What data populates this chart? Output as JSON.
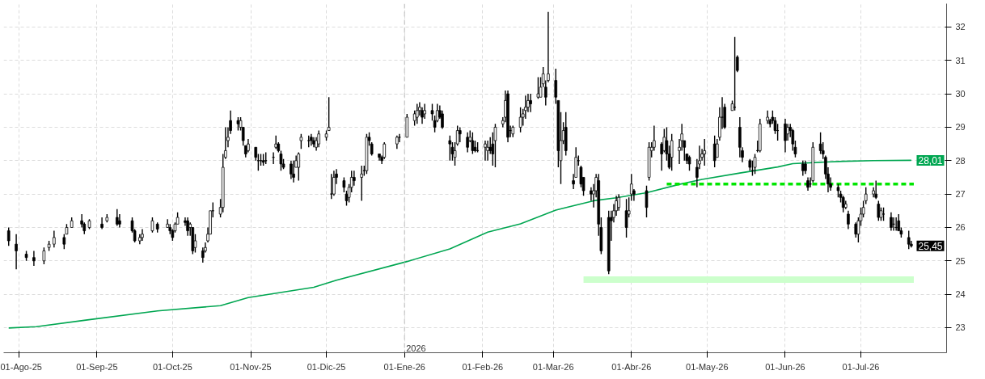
{
  "chart_data": {
    "type": "candlestick",
    "color": "#000000",
    "x": [
      "2025-07-28",
      "2025-07-31",
      "2025-08-04",
      "2025-08-07",
      "2025-08-11",
      "2025-08-13",
      "2025-08-15",
      "2025-08-19",
      "2025-08-20",
      "2025-08-22",
      "2025-08-26",
      "2025-08-27",
      "2025-08-29",
      "2025-09-03",
      "2025-09-05",
      "2025-09-09",
      "2025-09-10",
      "2025-09-15",
      "2025-09-16",
      "2025-09-18",
      "2025-09-19",
      "2025-09-23",
      "2025-09-25",
      "2025-09-29",
      "2025-09-30",
      "2025-10-01",
      "2025-10-02",
      "2025-10-03",
      "2025-10-06",
      "2025-10-07",
      "2025-10-08",
      "2025-10-09",
      "2025-10-10",
      "2025-10-13",
      "2025-10-14",
      "2025-10-15",
      "2025-10-16",
      "2025-10-17",
      "2025-10-20",
      "2025-10-21",
      "2025-10-22",
      "2025-10-23",
      "2025-10-24",
      "2025-10-27",
      "2025-10-28",
      "2025-10-29",
      "2025-10-30",
      "2025-10-31",
      "2025-11-03",
      "2025-11-04",
      "2025-11-05",
      "2025-11-06",
      "2025-11-07",
      "2025-11-10",
      "2025-11-11",
      "2025-11-12",
      "2025-11-13",
      "2025-11-14",
      "2025-11-17",
      "2025-11-18",
      "2025-11-19",
      "2025-11-20",
      "2025-11-21",
      "2025-11-24",
      "2025-11-25",
      "2025-11-26",
      "2025-11-27",
      "2025-11-28",
      "2025-12-01",
      "2025-12-02",
      "2025-12-03",
      "2025-12-04",
      "2025-12-05",
      "2025-12-08",
      "2025-12-09",
      "2025-12-10",
      "2025-12-11",
      "2025-12-12",
      "2025-12-15",
      "2025-12-16",
      "2025-12-17",
      "2025-12-18",
      "2025-12-19",
      "2025-12-22",
      "2025-12-23",
      "2025-12-24",
      "2025-12-29",
      "2025-12-30",
      "2026-01-02",
      "2026-01-05",
      "2026-01-06",
      "2026-01-07",
      "2026-01-08",
      "2026-01-09",
      "2026-01-12",
      "2026-01-13",
      "2026-01-14",
      "2026-01-15",
      "2026-01-16",
      "2026-01-19",
      "2026-01-20",
      "2026-01-21",
      "2026-01-22",
      "2026-01-23",
      "2026-01-26",
      "2026-01-27",
      "2026-01-28",
      "2026-01-29",
      "2026-01-30",
      "2026-02-02",
      "2026-02-03",
      "2026-02-04",
      "2026-02-05",
      "2026-02-06",
      "2026-02-09",
      "2026-02-10",
      "2026-02-11",
      "2026-02-12",
      "2026-02-13",
      "2026-02-16",
      "2026-02-17",
      "2026-02-18",
      "2026-02-19",
      "2026-02-20",
      "2026-02-23",
      "2026-02-24",
      "2026-02-25",
      "2026-02-26",
      "2026-02-27",
      "2026-03-02",
      "2026-03-03",
      "2026-03-04",
      "2026-03-05",
      "2026-03-06",
      "2026-03-09",
      "2026-03-10",
      "2026-03-11",
      "2026-03-12",
      "2026-03-13",
      "2026-03-16",
      "2026-03-17",
      "2026-03-18",
      "2026-03-19",
      "2026-03-20",
      "2026-03-23",
      "2026-03-24",
      "2026-03-25",
      "2026-03-26",
      "2026-03-27",
      "2026-03-30",
      "2026-03-31",
      "2026-04-01",
      "2026-04-02",
      "2026-04-07",
      "2026-04-08",
      "2026-04-09",
      "2026-04-10",
      "2026-04-13",
      "2026-04-14",
      "2026-04-15",
      "2026-04-16",
      "2026-04-17",
      "2026-04-20",
      "2026-04-21",
      "2026-04-22",
      "2026-04-23",
      "2026-04-24",
      "2026-04-27",
      "2026-04-28",
      "2026-04-29",
      "2026-04-30",
      "2026-05-04",
      "2026-05-05",
      "2026-05-06",
      "2026-05-07",
      "2026-05-08",
      "2026-05-11",
      "2026-05-12",
      "2026-05-13",
      "2026-05-14",
      "2026-05-15",
      "2026-05-18",
      "2026-05-19",
      "2026-05-20",
      "2026-05-21",
      "2026-05-22",
      "2026-05-25",
      "2026-05-26",
      "2026-05-27",
      "2026-05-28",
      "2026-05-29",
      "2026-06-01",
      "2026-06-02",
      "2026-06-03",
      "2026-06-04",
      "2026-06-05",
      "2026-06-08",
      "2026-06-09",
      "2026-06-10",
      "2026-06-11",
      "2026-06-12",
      "2026-06-15",
      "2026-06-16",
      "2026-06-17",
      "2026-06-18",
      "2026-06-19",
      "2026-06-22",
      "2026-06-23",
      "2026-06-24",
      "2026-06-25",
      "2026-06-26",
      "2026-06-29",
      "2026-06-30",
      "2026-07-01",
      "2026-07-02",
      "2026-07-03",
      "2026-07-06",
      "2026-07-07",
      "2026-07-08",
      "2026-07-09",
      "2026-07-10",
      "2026-07-13",
      "2026-07-14",
      "2026-07-15",
      "2026-07-16",
      "2026-07-17",
      "2026-07-20",
      "2026-07-21"
    ],
    "ohlc": [
      [
        25.9,
        26.0,
        25.45,
        25.6
      ],
      [
        25.5,
        25.8,
        24.75,
        25.3
      ],
      [
        25.2,
        25.3,
        25.0,
        25.1
      ],
      [
        25.1,
        25.3,
        24.85,
        25.0
      ],
      [
        25.0,
        25.4,
        24.9,
        25.3
      ],
      [
        25.4,
        25.6,
        25.3,
        25.5
      ],
      [
        25.5,
        25.9,
        25.4,
        25.7
      ],
      [
        25.7,
        25.8,
        25.35,
        25.5
      ],
      [
        25.8,
        26.1,
        25.8,
        26.0
      ],
      [
        26.0,
        26.3,
        26.0,
        26.2
      ],
      [
        26.2,
        26.4,
        26.0,
        26.1
      ],
      [
        26.1,
        26.15,
        25.8,
        25.9
      ],
      [
        26.0,
        26.25,
        25.95,
        26.2
      ],
      [
        26.1,
        26.3,
        25.95,
        26.0
      ],
      [
        26.2,
        26.4,
        26.15,
        26.3
      ],
      [
        26.3,
        26.55,
        26.05,
        26.1
      ],
      [
        26.2,
        26.4,
        26.0,
        26.1
      ],
      [
        26.2,
        26.3,
        25.85,
        25.9
      ],
      [
        25.9,
        25.95,
        25.55,
        25.6
      ],
      [
        25.6,
        25.8,
        25.5,
        25.7
      ],
      [
        25.7,
        25.95,
        25.6,
        25.8
      ],
      [
        25.9,
        26.3,
        25.85,
        26.2
      ],
      [
        26.1,
        26.15,
        25.85,
        25.95
      ],
      [
        26.0,
        26.25,
        26.0,
        26.1
      ],
      [
        26.0,
        26.1,
        25.8,
        25.9
      ],
      [
        25.9,
        25.95,
        25.6,
        25.7
      ],
      [
        25.9,
        26.15,
        25.85,
        26.1
      ],
      [
        26.1,
        26.45,
        26.1,
        26.3
      ],
      [
        26.2,
        26.3,
        26.05,
        26.15
      ],
      [
        26.2,
        26.3,
        25.75,
        25.9
      ],
      [
        26.0,
        26.15,
        25.75,
        26.1
      ],
      [
        26.0,
        26.0,
        25.2,
        25.3
      ],
      [
        25.4,
        25.8,
        25.25,
        25.6
      ],
      [
        25.3,
        25.4,
        24.95,
        25.1
      ],
      [
        25.3,
        25.55,
        25.25,
        25.4
      ],
      [
        25.6,
        26.0,
        25.55,
        25.8
      ],
      [
        25.8,
        26.5,
        25.8,
        26.5
      ],
      [
        26.5,
        26.75,
        26.3,
        26.5
      ],
      [
        26.4,
        26.85,
        26.3,
        26.6
      ],
      [
        26.6,
        28.2,
        26.45,
        27.8
      ],
      [
        28.1,
        29.0,
        28.05,
        28.3
      ],
      [
        28.6,
        29.0,
        28.4,
        28.7
      ],
      [
        29.2,
        29.5,
        28.8,
        28.9
      ],
      [
        29.2,
        29.3,
        28.9,
        29.1
      ],
      [
        29.0,
        29.3,
        28.9,
        29.2
      ],
      [
        29.0,
        29.0,
        28.45,
        28.6
      ],
      [
        28.45,
        28.45,
        28.1,
        28.2
      ],
      [
        28.3,
        28.65,
        28.25,
        28.5
      ],
      [
        28.4,
        28.4,
        28.0,
        28.1
      ],
      [
        28.0,
        28.2,
        27.7,
        28.0
      ],
      [
        28.0,
        28.2,
        27.85,
        28.0
      ],
      [
        28.0,
        28.2,
        27.85,
        27.95
      ],
      [
        28.0,
        28.25,
        27.9,
        28.0
      ],
      [
        28.1,
        28.25,
        27.9,
        28.1
      ],
      [
        28.4,
        28.75,
        28.35,
        28.5
      ],
      [
        28.5,
        28.55,
        28.25,
        28.3
      ],
      [
        28.2,
        28.3,
        27.7,
        27.9
      ],
      [
        27.9,
        28.05,
        27.75,
        27.8
      ],
      [
        27.9,
        28.0,
        27.45,
        27.6
      ],
      [
        27.6,
        28.0,
        27.35,
        27.5
      ],
      [
        27.8,
        28.15,
        27.8,
        28.0
      ],
      [
        27.8,
        28.25,
        27.4,
        28.2
      ],
      [
        28.6,
        28.8,
        28.35,
        28.7
      ],
      [
        28.6,
        28.75,
        28.4,
        28.6
      ],
      [
        28.7,
        28.8,
        28.45,
        28.6
      ],
      [
        28.6,
        28.7,
        28.4,
        28.5
      ],
      [
        28.4,
        28.7,
        28.3,
        28.6
      ],
      [
        28.5,
        28.9,
        28.4,
        28.8
      ],
      [
        28.7,
        28.9,
        28.6,
        28.8
      ],
      [
        28.9,
        29.9,
        28.9,
        29.0
      ],
      [
        27.0,
        27.6,
        26.85,
        27.0
      ],
      [
        27.0,
        27.7,
        26.95,
        27.5
      ],
      [
        27.6,
        27.75,
        27.3,
        27.5
      ],
      [
        27.4,
        27.5,
        27.05,
        27.2
      ],
      [
        27.0,
        27.1,
        26.65,
        26.8
      ],
      [
        26.9,
        27.3,
        26.75,
        27.2
      ],
      [
        27.2,
        27.7,
        27.05,
        27.5
      ],
      [
        27.5,
        27.7,
        27.25,
        27.4
      ],
      [
        27.5,
        27.85,
        26.8,
        27.6
      ],
      [
        27.7,
        27.85,
        27.55,
        27.7
      ],
      [
        27.7,
        28.8,
        27.6,
        28.7
      ],
      [
        28.7,
        28.85,
        28.45,
        28.6
      ],
      [
        28.5,
        28.55,
        28.15,
        28.2
      ],
      [
        28.2,
        28.2,
        28.0,
        28.1
      ],
      [
        28.1,
        28.15,
        27.9,
        28.0
      ],
      [
        28.1,
        28.55,
        28.05,
        28.5
      ],
      [
        28.5,
        28.75,
        28.35,
        28.7
      ],
      [
        28.7,
        28.8,
        28.55,
        28.7
      ],
      [
        28.7,
        29.4,
        28.7,
        29.3
      ],
      [
        29.2,
        29.5,
        29.05,
        29.4
      ],
      [
        29.3,
        29.7,
        29.1,
        29.5
      ],
      [
        29.5,
        29.75,
        29.35,
        29.6
      ],
      [
        29.5,
        29.6,
        29.1,
        29.3
      ],
      [
        29.4,
        29.7,
        29.25,
        29.5
      ],
      [
        29.5,
        29.7,
        29.2,
        29.4
      ],
      [
        29.2,
        29.35,
        28.85,
        29.0
      ],
      [
        29.2,
        29.7,
        29.15,
        29.5
      ],
      [
        29.5,
        29.65,
        29.25,
        29.3
      ],
      [
        29.4,
        29.5,
        28.95,
        29.0
      ],
      [
        28.6,
        28.75,
        28.0,
        28.5
      ],
      [
        28.4,
        28.55,
        28.0,
        28.2
      ],
      [
        28.1,
        28.55,
        27.85,
        28.3
      ],
      [
        28.5,
        29.05,
        28.45,
        28.9
      ],
      [
        28.9,
        29.0,
        28.55,
        28.8
      ],
      [
        28.7,
        28.85,
        28.25,
        28.4
      ],
      [
        28.6,
        28.9,
        28.55,
        28.7
      ],
      [
        28.6,
        28.85,
        28.2,
        28.3
      ],
      [
        28.4,
        28.6,
        28.25,
        28.3
      ],
      [
        28.3,
        28.55,
        28.25,
        28.3
      ],
      [
        28.4,
        28.6,
        28.0,
        28.5
      ],
      [
        28.3,
        28.6,
        28.0,
        28.4
      ],
      [
        28.4,
        28.7,
        28.2,
        28.3
      ],
      [
        28.5,
        28.85,
        27.85,
        28.2
      ],
      [
        28.6,
        29.1,
        27.8,
        29.0
      ],
      [
        29.1,
        29.3,
        29.0,
        29.2
      ],
      [
        29.3,
        30.1,
        29.15,
        29.8
      ],
      [
        30.0,
        30.1,
        28.55,
        28.7
      ],
      [
        28.9,
        29.05,
        28.7,
        28.9
      ],
      [
        28.8,
        29.05,
        28.7,
        29.0
      ],
      [
        29.0,
        29.6,
        28.85,
        29.3
      ],
      [
        29.3,
        29.55,
        29.05,
        29.4
      ],
      [
        29.5,
        29.95,
        29.25,
        29.6
      ],
      [
        29.6,
        30.0,
        29.45,
        29.8
      ],
      [
        29.8,
        30.0,
        29.45,
        29.7
      ],
      [
        29.9,
        30.5,
        29.85,
        30.0
      ],
      [
        29.9,
        30.5,
        29.9,
        30.2
      ],
      [
        30.3,
        30.8,
        30.2,
        30.6
      ],
      [
        30.2,
        30.4,
        29.65,
        29.9
      ],
      [
        30.4,
        32.45,
        30.35,
        30.6
      ],
      [
        30.4,
        30.75,
        29.7,
        29.9
      ],
      [
        29.8,
        29.8,
        27.8,
        28.3
      ],
      [
        28.0,
        29.45,
        27.3,
        28.6
      ],
      [
        28.6,
        29.15,
        28.5,
        28.9
      ],
      [
        29.0,
        29.45,
        28.15,
        28.3
      ],
      [
        27.4,
        27.6,
        27.15,
        27.3
      ],
      [
        27.5,
        28.4,
        27.5,
        28.1
      ],
      [
        28.0,
        28.15,
        27.85,
        28.0
      ],
      [
        27.8,
        27.85,
        27.2,
        27.3
      ],
      [
        27.5,
        27.5,
        26.95,
        27.1
      ],
      [
        27.1,
        27.2,
        26.8,
        27.0
      ],
      [
        27.0,
        27.3,
        26.6,
        27.1
      ],
      [
        27.1,
        27.6,
        26.9,
        27.5
      ],
      [
        27.4,
        27.6,
        25.75,
        26.1
      ],
      [
        26.0,
        26.3,
        25.2,
        25.3
      ],
      [
        26.3,
        26.5,
        24.6,
        24.7
      ],
      [
        26.3,
        26.5,
        25.6,
        26.2
      ],
      [
        26.3,
        26.7,
        26.15,
        26.5
      ],
      [
        26.5,
        26.95,
        26.35,
        26.8
      ],
      [
        26.6,
        27.0,
        26.5,
        26.9
      ],
      [
        26.5,
        26.85,
        25.7,
        26.0
      ],
      [
        26.4,
        26.9,
        26.3,
        26.5
      ],
      [
        27.0,
        27.6,
        26.8,
        27.3
      ],
      [
        27.1,
        27.15,
        26.8,
        27.0
      ],
      [
        27.1,
        27.25,
        26.3,
        26.6
      ],
      [
        27.5,
        28.55,
        27.4,
        28.4
      ],
      [
        28.3,
        28.55,
        28.1,
        28.4
      ],
      [
        28.4,
        29.05,
        28.3,
        28.6
      ],
      [
        28.5,
        28.55,
        27.7,
        28.2
      ],
      [
        28.3,
        28.95,
        28.25,
        28.7
      ],
      [
        28.6,
        29.0,
        28.0,
        28.2
      ],
      [
        28.2,
        28.45,
        27.75,
        27.8
      ],
      [
        28.1,
        28.8,
        27.7,
        28.6
      ],
      [
        28.3,
        28.65,
        27.9,
        28.4
      ],
      [
        28.6,
        29.1,
        28.3,
        28.8
      ],
      [
        28.6,
        28.6,
        28.0,
        28.4
      ],
      [
        28.2,
        28.2,
        27.9,
        28.0
      ],
      [
        28.1,
        28.15,
        27.7,
        27.9
      ],
      [
        27.8,
        28.05,
        27.2,
        27.5
      ],
      [
        27.9,
        28.45,
        27.75,
        28.0
      ],
      [
        28.1,
        28.35,
        28.0,
        28.2
      ],
      [
        28.2,
        28.65,
        27.85,
        28.3
      ],
      [
        28.5,
        28.75,
        27.8,
        28.0
      ],
      [
        28.1,
        28.65,
        28.1,
        28.5
      ],
      [
        28.7,
        29.6,
        28.6,
        29.3
      ],
      [
        29.3,
        29.9,
        28.95,
        29.3
      ],
      [
        29.6,
        29.7,
        28.95,
        29.0
      ],
      [
        29.5,
        29.8,
        29.5,
        29.7
      ],
      [
        29.6,
        31.7,
        29.5,
        29.6
      ],
      [
        31.1,
        31.15,
        30.65,
        30.7
      ],
      [
        29.0,
        29.3,
        28.1,
        28.4
      ],
      [
        28.3,
        28.4,
        27.95,
        28.1
      ],
      [
        28.0,
        28.05,
        27.7,
        27.8
      ],
      [
        27.7,
        28.0,
        27.55,
        27.7
      ],
      [
        27.8,
        28.2,
        27.6,
        28.1
      ],
      [
        28.3,
        28.6,
        28.25,
        28.3
      ],
      [
        28.3,
        29.25,
        28.25,
        29.1
      ],
      [
        29.2,
        29.5,
        29.1,
        29.3
      ],
      [
        29.2,
        29.25,
        29.0,
        29.1
      ],
      [
        29.3,
        29.5,
        29.1,
        29.2
      ],
      [
        29.2,
        29.3,
        28.8,
        28.9
      ],
      [
        28.9,
        29.1,
        28.6,
        28.9
      ],
      [
        29.1,
        29.25,
        28.25,
        28.6
      ],
      [
        28.8,
        29.1,
        28.6,
        29.0
      ],
      [
        29.0,
        29.1,
        28.7,
        28.9
      ],
      [
        28.9,
        28.95,
        28.3,
        28.5
      ],
      [
        28.4,
        28.6,
        28.1,
        28.2
      ],
      [
        27.9,
        28.0,
        27.55,
        27.7
      ],
      [
        27.9,
        28.0,
        27.6,
        27.7
      ],
      [
        27.4,
        27.5,
        27.1,
        27.2
      ],
      [
        27.3,
        27.5,
        27.2,
        27.3
      ],
      [
        27.4,
        28.55,
        27.35,
        28.4
      ],
      [
        28.5,
        28.85,
        28.2,
        28.3
      ],
      [
        28.3,
        28.55,
        28.05,
        28.2
      ],
      [
        28.1,
        28.15,
        27.45,
        27.6
      ],
      [
        27.6,
        27.8,
        27.05,
        27.3
      ],
      [
        27.3,
        27.5,
        27.1,
        27.2
      ],
      [
        27.2,
        27.3,
        26.9,
        27.1
      ],
      [
        27.0,
        27.1,
        26.75,
        26.9
      ],
      [
        26.9,
        26.95,
        26.45,
        26.6
      ],
      [
        26.6,
        26.8,
        26.55,
        26.7
      ],
      [
        26.4,
        26.5,
        25.95,
        26.1
      ],
      [
        26.1,
        26.15,
        25.7,
        25.8
      ],
      [
        25.8,
        26.3,
        25.55,
        26.2
      ],
      [
        26.2,
        26.6,
        26.05,
        26.4
      ],
      [
        26.4,
        26.8,
        26.3,
        26.6
      ],
      [
        26.8,
        27.2,
        26.7,
        27.0
      ],
      [
        27.0,
        27.2,
        26.9,
        27.1
      ],
      [
        27.0,
        27.4,
        26.85,
        26.9
      ],
      [
        26.7,
        26.8,
        26.2,
        26.3
      ],
      [
        26.3,
        26.6,
        26.2,
        26.5
      ],
      [
        26.4,
        26.6,
        26.2,
        26.4
      ],
      [
        26.3,
        26.45,
        25.9,
        26.0
      ],
      [
        26.1,
        26.3,
        25.9,
        26.1
      ],
      [
        26.0,
        26.3,
        25.9,
        26.0
      ],
      [
        26.2,
        26.4,
        25.9,
        25.9
      ],
      [
        25.9,
        26.0,
        25.7,
        25.8
      ],
      [
        25.7,
        25.9,
        25.35,
        25.5
      ],
      [
        25.5,
        25.6,
        25.4,
        25.45
      ]
    ],
    "series": [
      {
        "type": "line",
        "color": "#00a651",
        "line_style": "solid",
        "x": [
          "2025-07-28",
          "2025-08-08",
          "2025-08-27",
          "2025-09-25",
          "2025-10-20",
          "2025-10-31",
          "2025-11-26",
          "2025-12-05",
          "2026-01-02",
          "2026-01-19",
          "2026-02-03",
          "2026-02-16",
          "2026-03-02",
          "2026-03-17",
          "2026-03-26",
          "2026-04-07",
          "2026-04-20",
          "2026-04-29",
          "2026-05-14",
          "2026-05-29",
          "2026-06-04",
          "2026-06-17",
          "2026-06-24",
          "2026-07-06",
          "2026-07-21"
        ],
        "values": [
          22.99,
          23.03,
          23.22,
          23.5,
          23.66,
          23.9,
          24.21,
          24.42,
          24.98,
          25.36,
          25.86,
          26.11,
          26.52,
          26.8,
          26.89,
          27.04,
          27.29,
          27.44,
          27.63,
          27.81,
          27.91,
          27.96,
          27.98,
          28.0,
          28.01
        ]
      },
      {
        "type": "line",
        "color": "#00e600",
        "line_style": "dashed",
        "x": [
          "2026-04-15",
          "2026-07-22"
        ],
        "values": [
          27.3,
          27.3
        ]
      },
      {
        "type": "line",
        "color": "#ccffcc",
        "line_style": "solid",
        "x": [
          "2026-03-13",
          "2026-07-22"
        ],
        "values": [
          24.44,
          24.44
        ]
      }
    ],
    "xlim": [
      "2025-07-26",
      "2026-08-04"
    ],
    "ylim": [
      22.25,
      32.7
    ],
    "xticks": [
      {
        "value": "2025-08-01",
        "label": "01-Ago-25"
      },
      {
        "value": "2025-09-01",
        "label": "01-Sep-25"
      },
      {
        "value": "2025-10-01",
        "label": "01-Oct-25"
      },
      {
        "value": "2025-11-01",
        "label": "01-Nov-25"
      },
      {
        "value": "2025-12-01",
        "label": "01-Dic-25"
      },
      {
        "value": "2026-01-01",
        "label": "01-Ene-26"
      },
      {
        "value": "2026-02-01",
        "label": "01-Feb-26"
      },
      {
        "value": "2026-03-01",
        "label": "01-Mar-26"
      },
      {
        "value": "2026-04-01",
        "label": "01-Abr-26"
      },
      {
        "value": "2026-05-01",
        "label": "01-May-26"
      },
      {
        "value": "2026-06-01",
        "label": "01-Jun-26"
      },
      {
        "value": "2026-07-01",
        "label": "01-Jul-26"
      }
    ],
    "yticks": [
      23,
      24,
      25,
      26,
      27,
      28,
      29,
      30,
      31,
      32
    ],
    "grid": true,
    "ref_lines": [
      {
        "axis": "x",
        "value": "2026-01-01",
        "label": "2026",
        "color": "#c8c8c8",
        "line_style": "dashed"
      }
    ],
    "annotations": [
      {
        "text": "28,01",
        "y": 28.01
      },
      {
        "text": "25,45",
        "y": 25.45
      }
    ]
  }
}
